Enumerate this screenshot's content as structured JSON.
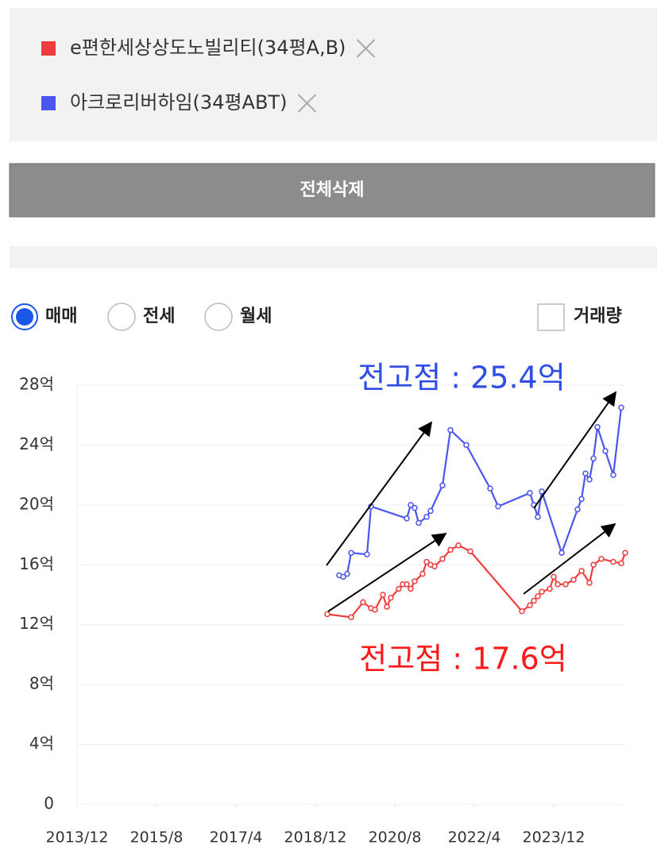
{
  "selection": {
    "remove_all": "전체삭제"
  },
  "controls": {
    "radios": [
      "매매",
      "전세",
      "월세"
    ],
    "checkbox": "거래량"
  },
  "chart_data": {
    "type": "line",
    "annotations": [
      "전고점 : 25.4억",
      "전고점 : 17.6억"
    ],
    "xlim": [
      "2013/12",
      "2025/6"
    ],
    "xticks": [
      "2013/12",
      "2015/8",
      "2017/4",
      "2018/12",
      "2020/8",
      "2022/4",
      "2023/12"
    ],
    "ylim": [
      0,
      28
    ],
    "yticks": [
      0,
      {
        "value": 4,
        "label": "4억"
      },
      {
        "value": 8,
        "label": "8억"
      },
      {
        "value": 12,
        "label": "12억"
      },
      {
        "value": 16,
        "label": "16억"
      },
      {
        "value": 20,
        "label": "20억"
      },
      {
        "value": 24,
        "label": "24억"
      },
      {
        "value": 28,
        "label": "28억"
      }
    ],
    "grid": true,
    "series": [
      {
        "name": "e편한세상상도노빌리티(34평A,B)",
        "color": "#f03c3c",
        "x": [
          "2019/3",
          "2019/9",
          "2019/12",
          "2020/2",
          "2020/3",
          "2020/5",
          "2020/6",
          "2020/7",
          "2020/9",
          "2020/10",
          "2020/11",
          "2020/12",
          "2021/1",
          "2021/3",
          "2021/4",
          "2021/5",
          "2021/6",
          "2021/8",
          "2021/10",
          "2021/12",
          "2022/3",
          "2023/4",
          "2023/6",
          "2023/7",
          "2023/8",
          "2023/9",
          "2023/11",
          "2023/12",
          "2024/1",
          "2024/3",
          "2024/5",
          "2024/7",
          "2024/9",
          "2024/10",
          "2024/12",
          "2025/3",
          "2025/5",
          "2025/6"
        ],
        "values": [
          12.7,
          12.5,
          13.5,
          13.1,
          13.0,
          14.0,
          13.2,
          13.8,
          14.4,
          14.7,
          14.7,
          14.4,
          14.9,
          15.4,
          16.2,
          16.0,
          15.9,
          16.4,
          17.0,
          17.3,
          16.9,
          12.9,
          13.3,
          13.6,
          13.9,
          14.2,
          14.4,
          15.2,
          14.7,
          14.7,
          15.0,
          15.6,
          14.8,
          16.0,
          16.4,
          16.2,
          16.1,
          16.8
        ]
      },
      {
        "name": "아크로리버하임(34평ABT)",
        "color": "#4b55f0",
        "x": [
          "2019/6",
          "2019/7",
          "2019/8",
          "2019/9",
          "2020/1",
          "2020/2",
          "2020/11",
          "2020/12",
          "2021/1",
          "2021/2",
          "2021/4",
          "2021/5",
          "2021/8",
          "2021/10",
          "2022/2",
          "2022/8",
          "2022/10",
          "2023/6",
          "2023/7",
          "2023/8",
          "2023/9",
          "2024/2",
          "2024/6",
          "2024/7",
          "2024/8",
          "2024/9",
          "2024/10",
          "2024/11",
          "2025/1",
          "2025/3",
          "2025/5"
        ],
        "values": [
          15.3,
          15.2,
          15.4,
          16.8,
          16.7,
          19.9,
          19.1,
          20.0,
          19.8,
          18.8,
          19.2,
          19.6,
          21.3,
          25.0,
          24.0,
          21.1,
          19.9,
          20.8,
          20.0,
          19.2,
          20.9,
          16.8,
          19.7,
          20.4,
          22.1,
          21.7,
          23.1,
          25.2,
          23.6,
          22.0,
          26.5
        ]
      }
    ]
  }
}
